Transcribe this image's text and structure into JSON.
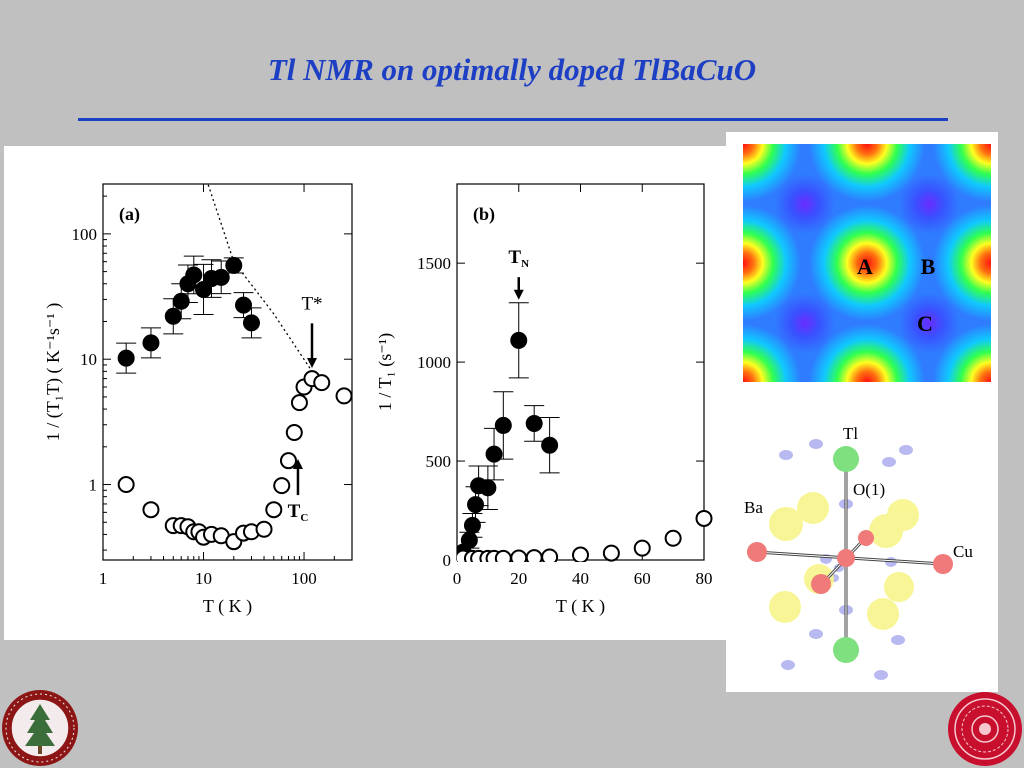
{
  "slide": {
    "title": "Tl NMR on optimally doped TlBaCuO",
    "accent_color": "#1d3fc4"
  },
  "chart_data": [
    {
      "type": "scatter",
      "panel_label": "(a)",
      "x_scale": "log",
      "y_scale": "log",
      "xlim": [
        1,
        300
      ],
      "ylim": [
        0.25,
        250
      ],
      "x_ticks": [
        1,
        10,
        100
      ],
      "x_tick_labels": [
        "1",
        "10",
        "100"
      ],
      "y_ticks": [
        1,
        10,
        100
      ],
      "y_tick_labels": [
        "1",
        "10",
        "100"
      ],
      "xlabel": "T  ( K )",
      "ylabel": "1 / (T₁T)  ( K⁻¹s⁻¹ )",
      "series": [
        {
          "marker": "filled",
          "points": [
            {
              "x": 1.7,
              "y": 10.2,
              "err": 0.12
            },
            {
              "x": 3.0,
              "y": 13.5,
              "err": 0.12
            },
            {
              "x": 5.0,
              "y": 22,
              "err": 0.14
            },
            {
              "x": 6.0,
              "y": 29,
              "err": 0.14
            },
            {
              "x": 7.0,
              "y": 40,
              "err": 0.15
            },
            {
              "x": 8.0,
              "y": 47,
              "err": 0.15
            },
            {
              "x": 10,
              "y": 36,
              "err": 0.2
            },
            {
              "x": 12,
              "y": 44,
              "err": 0.15
            },
            {
              "x": 15,
              "y": 45,
              "err": 0.13
            },
            {
              "x": 20,
              "y": 56,
              "err": 0.06
            },
            {
              "x": 25,
              "y": 27,
              "err": 0.1
            },
            {
              "x": 30,
              "y": 19.5,
              "err": 0.12
            }
          ]
        },
        {
          "marker": "open",
          "points": [
            {
              "x": 1.7,
              "y": 1.0
            },
            {
              "x": 3.0,
              "y": 0.63
            },
            {
              "x": 5.0,
              "y": 0.47
            },
            {
              "x": 6.0,
              "y": 0.47
            },
            {
              "x": 7.0,
              "y": 0.46
            },
            {
              "x": 8.0,
              "y": 0.42
            },
            {
              "x": 9.0,
              "y": 0.42
            },
            {
              "x": 10,
              "y": 0.38
            },
            {
              "x": 12,
              "y": 0.4
            },
            {
              "x": 15,
              "y": 0.39
            },
            {
              "x": 20,
              "y": 0.35
            },
            {
              "x": 25,
              "y": 0.41
            },
            {
              "x": 30,
              "y": 0.42
            },
            {
              "x": 40,
              "y": 0.44
            },
            {
              "x": 50,
              "y": 0.63
            },
            {
              "x": 60,
              "y": 0.98
            },
            {
              "x": 70,
              "y": 1.55
            },
            {
              "x": 80,
              "y": 2.6
            },
            {
              "x": 90,
              "y": 4.5
            },
            {
              "x": 100,
              "y": 6.0
            },
            {
              "x": 120,
              "y": 7.0
            },
            {
              "x": 150,
              "y": 6.5
            },
            {
              "x": 250,
              "y": 5.1
            }
          ]
        }
      ],
      "dotted_curve": [
        [
          10,
          320
        ],
        [
          20,
          60
        ],
        [
          50,
          23
        ],
        [
          120,
          8
        ]
      ],
      "annotations": [
        {
          "text": "T*",
          "x": 120,
          "y": 25
        },
        {
          "text": "T",
          "sub": "C",
          "x": 87,
          "y": 0.55
        }
      ]
    },
    {
      "type": "scatter",
      "panel_label": "(b)",
      "xlim": [
        0,
        80
      ],
      "ylim": [
        0,
        1900
      ],
      "x_ticks": [
        0,
        20,
        40,
        60,
        80
      ],
      "x_tick_labels": [
        "0",
        "20",
        "40",
        "60",
        "80"
      ],
      "y_ticks": [
        0,
        500,
        1000,
        1500
      ],
      "y_tick_labels": [
        "0",
        "500",
        "1000",
        "1500"
      ],
      "xlabel": "T  ( K )",
      "ylabel": "1 / T₁  (s⁻¹)",
      "series": [
        {
          "marker": "filled",
          "points": [
            {
              "x": 2,
              "y": 40,
              "err": 0
            },
            {
              "x": 4,
              "y": 100,
              "err": 40
            },
            {
              "x": 5,
              "y": 175,
              "err": 60
            },
            {
              "x": 6,
              "y": 280,
              "err": 90
            },
            {
              "x": 7,
              "y": 375,
              "err": 100
            },
            {
              "x": 10,
              "y": 365,
              "err": 110
            },
            {
              "x": 12,
              "y": 535,
              "err": 130
            },
            {
              "x": 15,
              "y": 680,
              "err": 170
            },
            {
              "x": 20,
              "y": 1110,
              "err": 190
            },
            {
              "x": 25,
              "y": 690,
              "err": 90
            },
            {
              "x": 30,
              "y": 580,
              "err": 140
            }
          ]
        },
        {
          "marker": "open",
          "points": [
            {
              "x": 2,
              "y": 10
            },
            {
              "x": 5,
              "y": 8
            },
            {
              "x": 7,
              "y": 8
            },
            {
              "x": 10,
              "y": 8
            },
            {
              "x": 12,
              "y": 8
            },
            {
              "x": 15,
              "y": 8
            },
            {
              "x": 20,
              "y": 10
            },
            {
              "x": 25,
              "y": 12
            },
            {
              "x": 30,
              "y": 15
            },
            {
              "x": 40,
              "y": 25
            },
            {
              "x": 50,
              "y": 35
            },
            {
              "x": 60,
              "y": 60
            },
            {
              "x": 70,
              "y": 110
            },
            {
              "x": 80,
              "y": 210
            }
          ]
        }
      ],
      "annotations": [
        {
          "text": "T",
          "sub": "N",
          "x": 20,
          "y": 1500
        }
      ]
    }
  ],
  "contour_map": {
    "labels": [
      "A",
      "B",
      "C"
    ]
  },
  "crystal": {
    "labels": [
      "Tl",
      "O(1)",
      "Ba",
      "Cu"
    ],
    "colors": {
      "tl": "#7ee07e",
      "cu": "#f07a7a",
      "ba": "#f7f58a",
      "o": "#b9b9f2"
    }
  }
}
